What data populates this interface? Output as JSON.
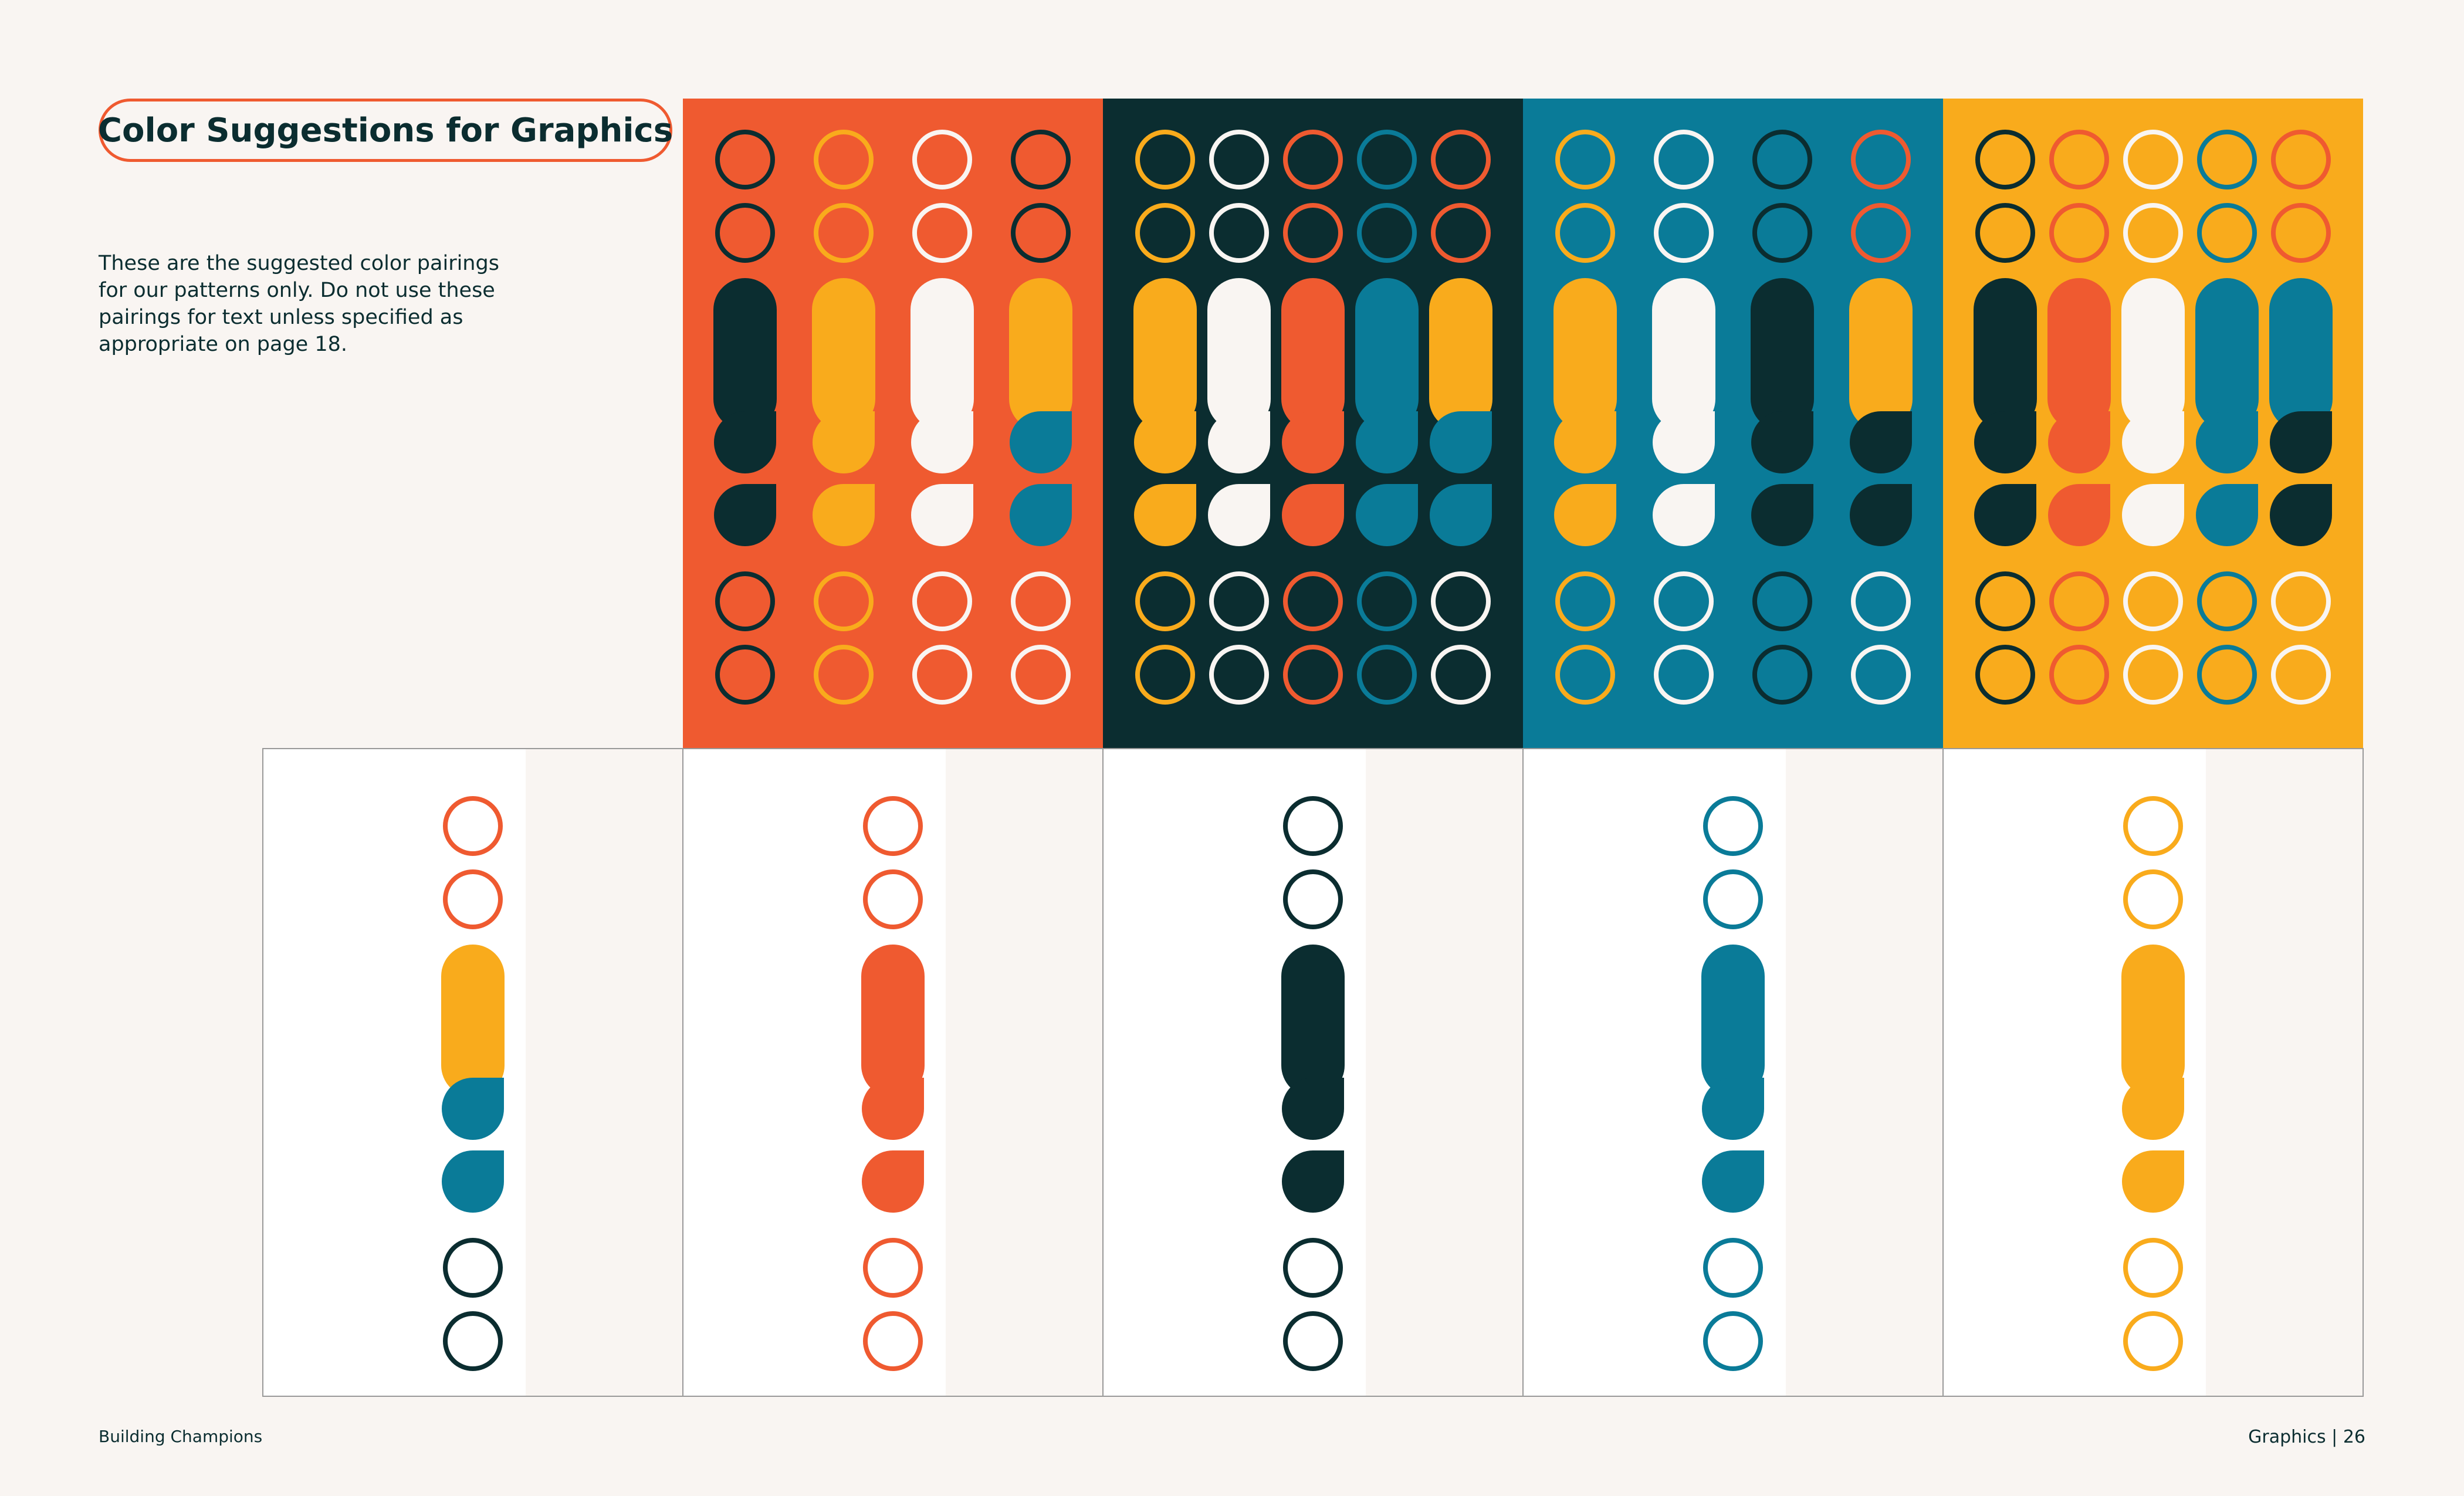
{
  "page": {
    "title": "Color Suggestions for Graphics",
    "description": "These are the suggested color pairings for our patterns only. Do not use these pairings for text unless specified as appropriate on page 18.",
    "footer_left": "Building Champions",
    "footer_section": "Graphics",
    "footer_separator": "|",
    "footer_page": "26"
  },
  "colors": {
    "orange": "#ef5a30",
    "dark": "#0b2d30",
    "teal": "#0a7b98",
    "yellow": "#f9ab1c",
    "cream": "#f9f5f2",
    "white": "#ffffff",
    "frame": "#999999"
  },
  "shape_order": [
    "ring",
    "ring",
    "pill",
    "drop",
    "drop",
    "ring",
    "ring"
  ],
  "pattern_panels": [
    {
      "name": "orange-panel",
      "background": "orange",
      "columns": [
        {
          "ring": "dark",
          "pill": "dark",
          "drop": "dark"
        },
        {
          "ring": "yellow",
          "pill": "yellow",
          "drop": "yellow"
        },
        {
          "ring": "cream",
          "pill": "cream",
          "drop": "cream"
        },
        {
          "ring": "dark",
          "pill": "yellow",
          "drop": "teal",
          "ring_bottom": "cream"
        }
      ]
    },
    {
      "name": "dark-panel",
      "background": "dark",
      "columns": [
        {
          "ring": "yellow",
          "pill": "yellow",
          "drop": "yellow"
        },
        {
          "ring": "cream",
          "pill": "cream",
          "drop": "cream"
        },
        {
          "ring": "orange",
          "pill": "orange",
          "drop": "orange"
        },
        {
          "ring": "teal",
          "pill": "teal",
          "drop": "teal"
        },
        {
          "ring": "orange",
          "pill": "yellow",
          "drop": "teal",
          "ring_bottom": "cream"
        }
      ]
    },
    {
      "name": "teal-panel",
      "background": "teal",
      "columns": [
        {
          "ring": "yellow",
          "pill": "yellow",
          "drop": "yellow"
        },
        {
          "ring": "cream",
          "pill": "cream",
          "drop": "cream"
        },
        {
          "ring": "dark",
          "pill": "dark",
          "drop": "dark"
        },
        {
          "ring": "orange",
          "pill": "yellow",
          "drop": "dark",
          "ring_bottom": "cream"
        }
      ]
    },
    {
      "name": "yellow-panel",
      "background": "yellow",
      "columns": [
        {
          "ring": "dark",
          "pill": "dark",
          "drop": "dark"
        },
        {
          "ring": "orange",
          "pill": "orange",
          "drop": "orange"
        },
        {
          "ring": "cream",
          "pill": "cream",
          "drop": "cream"
        },
        {
          "ring": "teal",
          "pill": "teal",
          "drop": "teal"
        },
        {
          "ring": "orange",
          "pill": "teal",
          "drop": "dark",
          "ring_bottom": "cream"
        }
      ]
    }
  ],
  "light_panels": [
    {
      "name": "light-panel-1",
      "ring": "orange",
      "pill": "yellow",
      "drop": "teal",
      "ring_bottom": "dark"
    },
    {
      "name": "light-panel-2",
      "ring": "orange",
      "pill": "orange",
      "drop": "orange",
      "ring_bottom": "orange"
    },
    {
      "name": "light-panel-3",
      "ring": "dark",
      "pill": "dark",
      "drop": "dark",
      "ring_bottom": "dark"
    },
    {
      "name": "light-panel-4",
      "ring": "teal",
      "pill": "teal",
      "drop": "teal",
      "ring_bottom": "teal"
    },
    {
      "name": "light-panel-5",
      "ring": "yellow",
      "pill": "yellow",
      "drop": "yellow",
      "ring_bottom": "yellow"
    }
  ]
}
